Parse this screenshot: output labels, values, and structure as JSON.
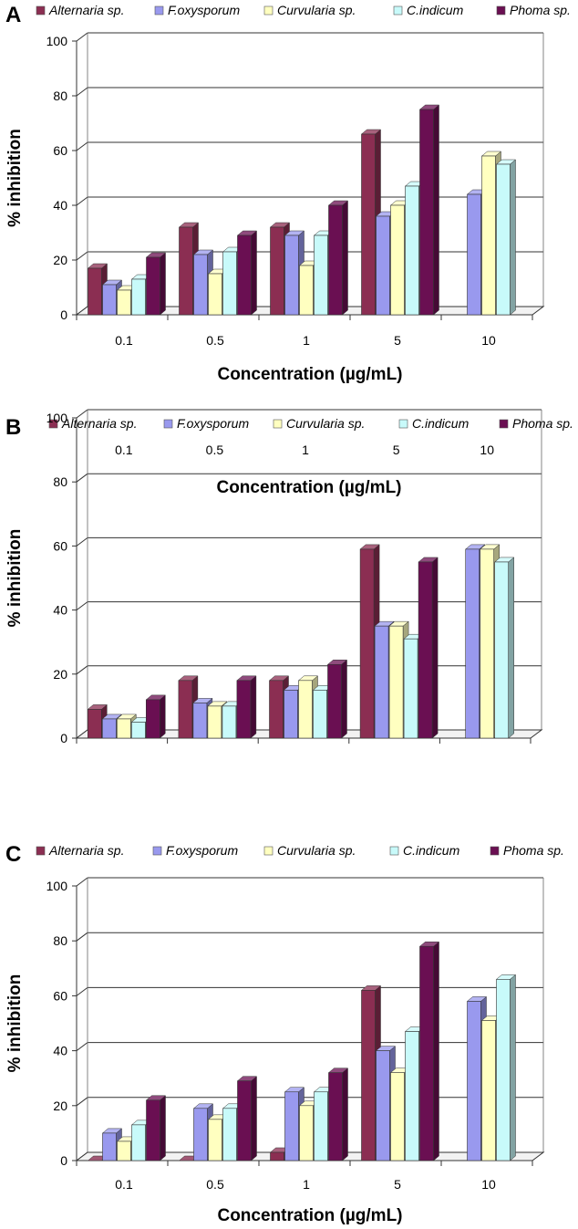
{
  "chart_data": [
    {
      "panel": "A",
      "type": "bar",
      "xlabel": "Concentration (µg/mL)",
      "ylabel": "% inhibition",
      "ylim": [
        0,
        100
      ],
      "yticks": [
        "0",
        "20",
        "40",
        "60",
        "80",
        "100"
      ],
      "categories": [
        "0.1",
        "0.5",
        "1",
        "5",
        "10"
      ],
      "series": [
        {
          "name": "Alternaria sp.",
          "color": "#8B2E52",
          "values": [
            17,
            32,
            32,
            66,
            0
          ]
        },
        {
          "name": "F.oxysporum",
          "color": "#9999EE",
          "values": [
            11,
            22,
            29,
            36,
            44
          ]
        },
        {
          "name": "Curvularia sp.",
          "color": "#FFFFC0",
          "values": [
            9,
            15,
            18,
            40,
            58
          ]
        },
        {
          "name": "C.indicum",
          "color": "#C8FAFA",
          "values": [
            13,
            23,
            29,
            47,
            55
          ]
        },
        {
          "name": "Phoma sp.",
          "color": "#6A0F52",
          "values": [
            21,
            29,
            40,
            75,
            0
          ]
        }
      ]
    },
    {
      "panel": "B",
      "type": "bar",
      "xlabel": "Concentration (µg/mL)",
      "ylabel": "% inhibition",
      "ylim": [
        0,
        100
      ],
      "yticks": [
        "0",
        "20",
        "40",
        "60",
        "80",
        "100"
      ],
      "categories": [
        "0.1",
        "0.5",
        "1",
        "5",
        "10"
      ],
      "series": [
        {
          "name": "Alternaria sp.",
          "color": "#8B2E52",
          "values": [
            9,
            18,
            18,
            59,
            0
          ]
        },
        {
          "name": "F.oxysporum",
          "color": "#9999EE",
          "values": [
            6,
            11,
            15,
            35,
            59
          ]
        },
        {
          "name": "Curvularia sp.",
          "color": "#FFFFC0",
          "values": [
            6,
            10,
            18,
            35,
            59
          ]
        },
        {
          "name": "C.indicum",
          "color": "#C8FAFA",
          "values": [
            5,
            10,
            15,
            31,
            55
          ]
        },
        {
          "name": "Phoma sp.",
          "color": "#6A0F52",
          "values": [
            12,
            18,
            23,
            55,
            0
          ]
        }
      ]
    },
    {
      "panel": "C",
      "type": "bar",
      "xlabel": "Concentration (µg/mL)",
      "ylabel": "% inhibition",
      "ylim": [
        0,
        100
      ],
      "yticks": [
        "0",
        "20",
        "40",
        "60",
        "80",
        "100"
      ],
      "categories": [
        "0.1",
        "0.5",
        "1",
        "5",
        "10"
      ],
      "series": [
        {
          "name": "Alternaria sp.",
          "color": "#8B2E52",
          "values": [
            0,
            0,
            3,
            62,
            0
          ]
        },
        {
          "name": "F.oxysporum",
          "color": "#9999EE",
          "values": [
            10,
            19,
            25,
            40,
            58
          ]
        },
        {
          "name": "Curvularia sp.",
          "color": "#FFFFC0",
          "values": [
            7,
            15,
            20,
            32,
            51
          ]
        },
        {
          "name": "C.indicum",
          "color": "#C8FAFA",
          "values": [
            13,
            19,
            25,
            47,
            66
          ]
        },
        {
          "name": "Phoma sp.",
          "color": "#6A0F52",
          "values": [
            22,
            29,
            32,
            78,
            0
          ]
        }
      ]
    }
  ]
}
